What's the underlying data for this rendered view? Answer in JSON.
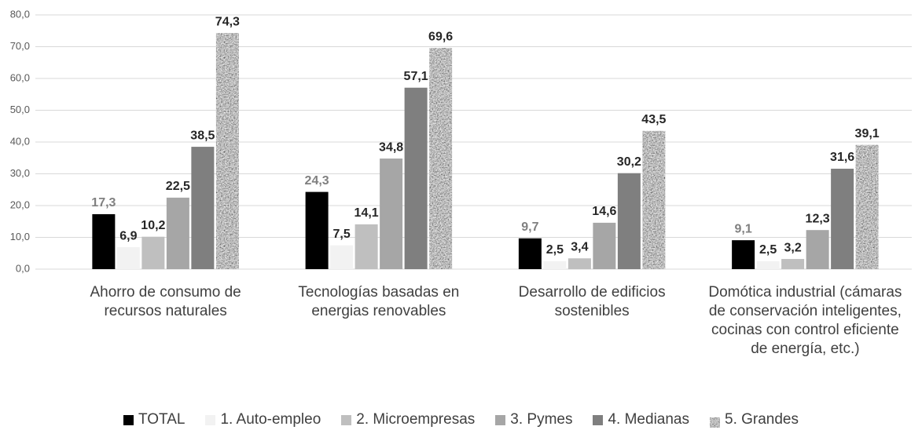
{
  "chart_data": {
    "type": "bar",
    "categories": [
      "Ahorro de consumo de recursos naturales",
      "Tecnologías basadas en energias renovables",
      "Desarrollo de edificios sostenibles",
      "Domótica industrial (cámaras de conservación inteligentes, cocinas con control eficiente de energía, etc.)"
    ],
    "series": [
      {
        "name": "TOTAL",
        "color": "#000000",
        "label_color": "#808080",
        "values": [
          17.3,
          24.3,
          9.7,
          9.1
        ],
        "value_labels": [
          "17,3",
          "24,3",
          "9,7",
          "9,1"
        ]
      },
      {
        "name": "1. Auto-empleo",
        "color": "#f2f2f2",
        "label_color": "#262626",
        "values": [
          6.9,
          7.5,
          2.5,
          2.5
        ],
        "value_labels": [
          "6,9",
          "7,5",
          "2,5",
          "2,5"
        ]
      },
      {
        "name": "2. Microempresas",
        "color": "#bfbfbf",
        "label_color": "#262626",
        "values": [
          10.2,
          14.1,
          3.4,
          3.2
        ],
        "value_labels": [
          "10,2",
          "14,1",
          "3,4",
          "3,2"
        ]
      },
      {
        "name": "3. Pymes",
        "color": "#a6a6a6",
        "label_color": "#262626",
        "values": [
          22.5,
          34.8,
          14.6,
          12.3
        ],
        "value_labels": [
          "22,5",
          "34,8",
          "14,6",
          "12,3"
        ]
      },
      {
        "name": "4. Medianas",
        "color": "#7f7f7f",
        "label_color": "#262626",
        "values": [
          38.5,
          57.1,
          30.2,
          31.6
        ],
        "value_labels": [
          "38,5",
          "57,1",
          "30,2",
          "31,6"
        ]
      },
      {
        "name": "5. Grandes",
        "color": "#8a8a8a",
        "pattern": "noise",
        "label_color": "#262626",
        "values": [
          74.3,
          69.6,
          43.5,
          39.1
        ],
        "value_labels": [
          "74,3",
          "69,6",
          "43,5",
          "39,1"
        ]
      }
    ],
    "ylim": [
      0,
      80
    ],
    "yticks": [
      {
        "value": 0,
        "label": "0,0"
      },
      {
        "value": 10,
        "label": "10,0"
      },
      {
        "value": 20,
        "label": "20,0"
      },
      {
        "value": 30,
        "label": "30,0"
      },
      {
        "value": 40,
        "label": "40,0"
      },
      {
        "value": 50,
        "label": "50,0"
      },
      {
        "value": 60,
        "label": "60,0"
      },
      {
        "value": 70,
        "label": "70,0"
      },
      {
        "value": 80,
        "label": "80,0"
      }
    ],
    "grid": true
  }
}
